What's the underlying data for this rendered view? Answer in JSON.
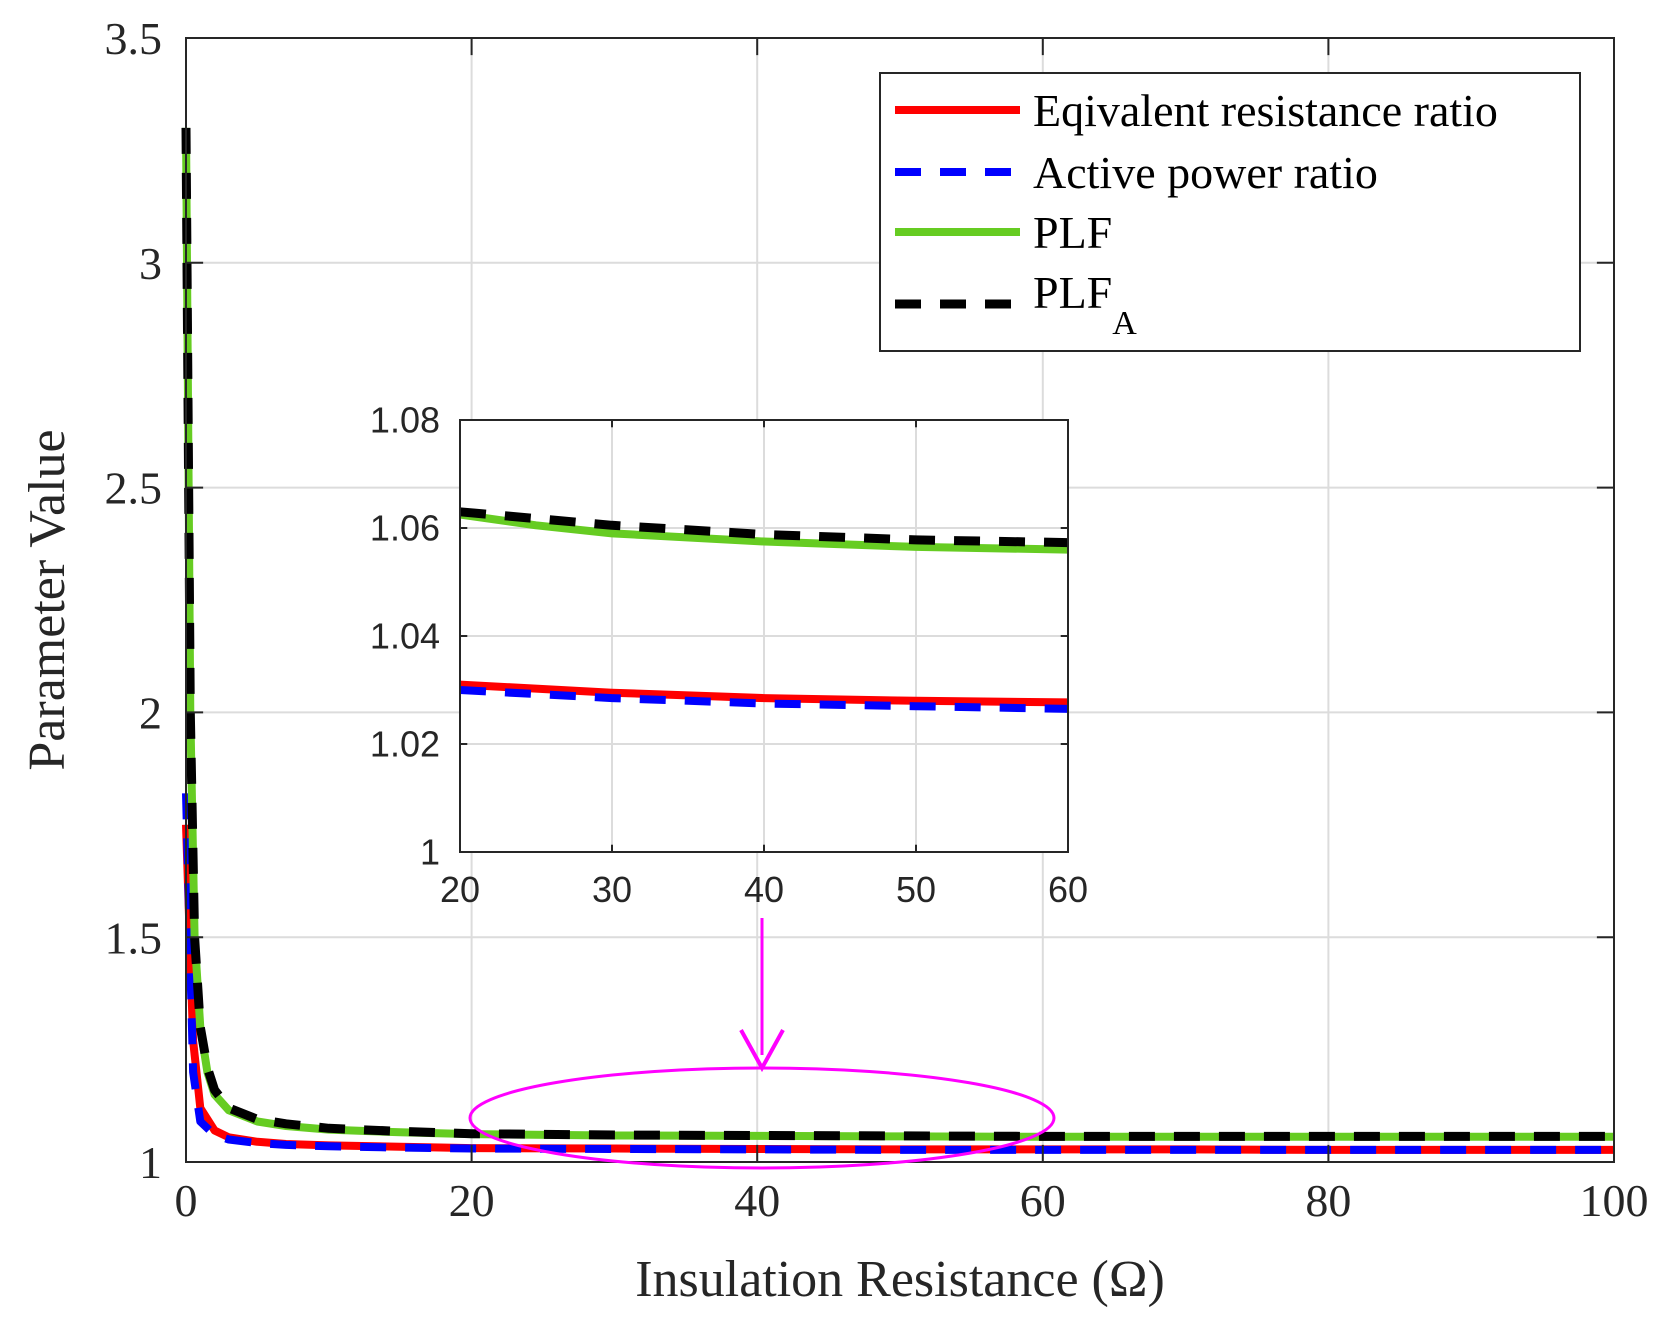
{
  "chart_data": [
    {
      "type": "line",
      "xlabel": "Insulation Resistance (Ω)",
      "ylabel": "Parameter Value",
      "xlim": [
        0,
        100
      ],
      "ylim": [
        1,
        3.5
      ],
      "xticks": [
        0,
        20,
        40,
        60,
        80,
        100
      ],
      "yticks": [
        1,
        1.5,
        2,
        2.5,
        3,
        3.5
      ],
      "xtick_labels": [
        "0",
        "20",
        "40",
        "60",
        "80",
        "100"
      ],
      "ytick_labels": [
        "1",
        "1.5",
        "2",
        "2.5",
        "3",
        "3.5"
      ],
      "grid": true,
      "legend_position": "top-right",
      "series": [
        {
          "name": "Eqivalent resistance ratio",
          "color": "#ff0000",
          "style": "solid",
          "x": [
            0,
            0.5,
            1,
            2,
            3,
            5,
            7,
            10,
            15,
            20,
            30,
            40,
            50,
            60,
            70,
            80,
            90,
            100
          ],
          "y": [
            1.75,
            1.27,
            1.12,
            1.07,
            1.055,
            1.045,
            1.04,
            1.037,
            1.034,
            1.031,
            1.03,
            1.029,
            1.028,
            1.028,
            1.028,
            1.027,
            1.027,
            1.027
          ]
        },
        {
          "name": "Active power ratio",
          "color": "#0000ff",
          "style": "dashed",
          "x": [
            0,
            0.5,
            1,
            2,
            3,
            5,
            7,
            10,
            15,
            20,
            30,
            40,
            50,
            60,
            70,
            80,
            90,
            100
          ],
          "y": [
            1.82,
            1.2,
            1.09,
            1.06,
            1.05,
            1.042,
            1.038,
            1.035,
            1.032,
            1.03,
            1.029,
            1.028,
            1.027,
            1.027,
            1.027,
            1.027,
            1.027,
            1.027
          ]
        },
        {
          "name": "PLF",
          "color": "#66cc22",
          "style": "solid",
          "x": [
            0,
            0.3,
            0.6,
            1,
            1.5,
            2,
            3,
            5,
            7,
            10,
            15,
            20,
            30,
            40,
            50,
            60,
            70,
            80,
            90,
            100
          ],
          "y": [
            3.3,
            2.0,
            1.5,
            1.3,
            1.2,
            1.15,
            1.115,
            1.09,
            1.08,
            1.072,
            1.066,
            1.062,
            1.059,
            1.058,
            1.057,
            1.056,
            1.056,
            1.056,
            1.056,
            1.056
          ]
        },
        {
          "name": "PLF",
          "subscript": "A",
          "color": "#000000",
          "style": "dashed",
          "x": [
            0,
            0.3,
            0.6,
            1,
            1.5,
            2,
            3,
            5,
            7,
            10,
            15,
            20,
            30,
            40,
            50,
            60,
            70,
            80,
            90,
            100
          ],
          "y": [
            3.3,
            2.0,
            1.5,
            1.3,
            1.21,
            1.16,
            1.12,
            1.095,
            1.085,
            1.075,
            1.068,
            1.063,
            1.06,
            1.059,
            1.058,
            1.057,
            1.057,
            1.057,
            1.057,
            1.057
          ]
        }
      ]
    },
    {
      "type": "line",
      "role": "inset",
      "xlim": [
        20,
        60
      ],
      "ylim": [
        1,
        1.08
      ],
      "xticks": [
        20,
        30,
        40,
        50,
        60
      ],
      "yticks": [
        1,
        1.02,
        1.04,
        1.06,
        1.08
      ],
      "xtick_labels": [
        "20",
        "30",
        "40",
        "50",
        "60"
      ],
      "ytick_labels": [
        "1",
        "1.02",
        "1.04",
        "1.06",
        "1.08"
      ],
      "grid": true,
      "series": [
        {
          "name": "Eqivalent resistance ratio",
          "color": "#ff0000",
          "style": "solid",
          "x": [
            20,
            30,
            40,
            50,
            60
          ],
          "y": [
            1.031,
            1.0295,
            1.0285,
            1.028,
            1.0277
          ]
        },
        {
          "name": "Active power ratio",
          "color": "#0000ff",
          "style": "dashed",
          "x": [
            20,
            30,
            40,
            50,
            60
          ],
          "y": [
            1.03,
            1.0285,
            1.0275,
            1.027,
            1.0265
          ]
        },
        {
          "name": "PLF",
          "color": "#66cc22",
          "style": "solid",
          "x": [
            20,
            25,
            30,
            40,
            50,
            60
          ],
          "y": [
            1.0625,
            1.0605,
            1.059,
            1.0575,
            1.0565,
            1.056
          ]
        },
        {
          "name": "PLF",
          "subscript": "A",
          "color": "#000000",
          "style": "dashed",
          "x": [
            20,
            30,
            40,
            50,
            60
          ],
          "y": [
            1.063,
            1.0605,
            1.0588,
            1.0578,
            1.0573
          ]
        }
      ],
      "annotation": {
        "type": "ellipse-with-arrow",
        "color": "#ff00ff",
        "x_range": [
          20,
          60
        ],
        "y_center": 1.06,
        "arrow_x": 40
      }
    }
  ]
}
